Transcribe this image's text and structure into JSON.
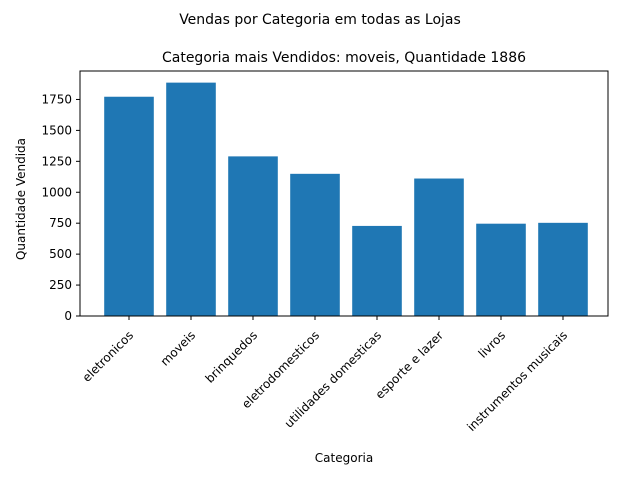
{
  "figure": {
    "suptitle": "Vendas por Categoria em todas as Lojas"
  },
  "chart_data": {
    "type": "bar",
    "title": "Categoria mais Vendidos: moveis, Quantidade 1886",
    "xlabel": "Categoria",
    "ylabel": "Quantidade Vendida",
    "categories": [
      "eletronicos",
      "moveis",
      "brinquedos",
      "eletrodomesticos",
      "utilidades domesticas",
      "esporte e lazer",
      "livros",
      "instrumentos musicais"
    ],
    "values": [
      1772,
      1886,
      1290,
      1149,
      728,
      1111,
      746,
      753
    ],
    "ylim": [
      0,
      1980
    ],
    "yticks": [
      0,
      250,
      500,
      750,
      1000,
      1250,
      1500,
      1750
    ],
    "bar_color": "#1f77b4",
    "grid": false,
    "xtick_rotation": 45
  }
}
